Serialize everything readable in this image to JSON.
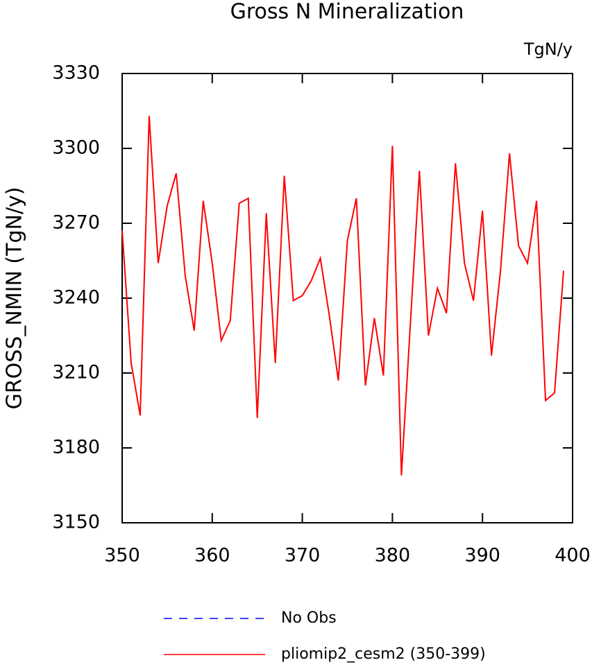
{
  "chart_data": {
    "type": "line",
    "title": "Gross N Mineralization",
    "units": "TgN/y",
    "y_label": "GROSS_NMIN  (TgN/y)",
    "x": [
      350,
      351,
      352,
      353,
      354,
      355,
      356,
      357,
      358,
      359,
      360,
      361,
      362,
      363,
      364,
      365,
      366,
      367,
      368,
      369,
      370,
      371,
      372,
      373,
      374,
      375,
      376,
      377,
      378,
      379,
      380,
      381,
      382,
      383,
      384,
      385,
      386,
      387,
      388,
      389,
      390,
      391,
      392,
      393,
      394,
      395,
      396,
      397,
      398,
      399
    ],
    "series": [
      {
        "color": "#ff0000",
        "values": [
          3267,
          3214,
          3193,
          3313,
          3254,
          3277,
          3290,
          3249,
          3227,
          3279,
          3254,
          3223,
          3231,
          3278,
          3280,
          3192,
          3274,
          3214,
          3289,
          3239,
          3241,
          3247,
          3256,
          3233,
          3207,
          3263,
          3280,
          3205,
          3232,
          3209,
          3301,
          3169,
          3230,
          3291,
          3225,
          3244,
          3234,
          3294,
          3254,
          3239,
          3275,
          3217,
          3251,
          3298,
          3261,
          3254,
          3279,
          3199,
          3202,
          3251
        ]
      }
    ],
    "legend": [
      {
        "label": "No Obs",
        "color": "#0000ff",
        "dashed": true
      },
      {
        "label": "pliomip2_cesm2 (350-399)",
        "color": "#ff0000",
        "dashed": false
      }
    ],
    "xlim": [
      350,
      400
    ],
    "ylim": [
      3150,
      3330
    ],
    "xticks": [
      350,
      360,
      370,
      380,
      390,
      400
    ],
    "yticks": [
      3150,
      3180,
      3210,
      3240,
      3270,
      3300,
      3330
    ]
  }
}
